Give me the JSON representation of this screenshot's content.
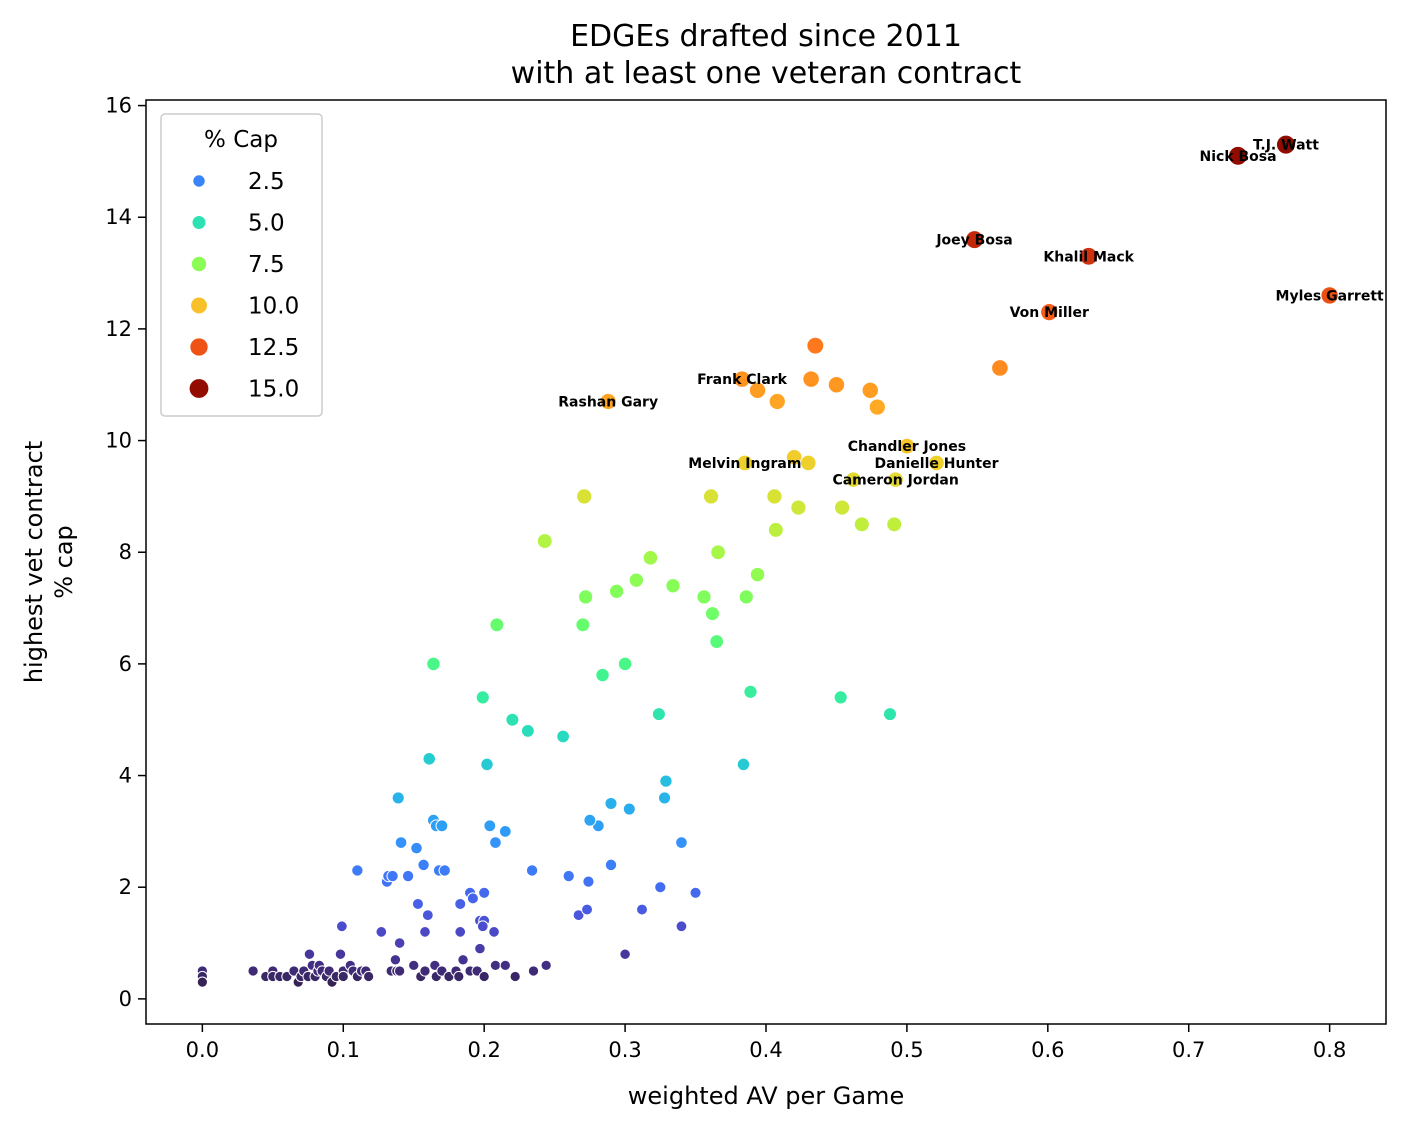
{
  "chart_data": {
    "type": "scatter",
    "title": "EDGEs drafted since 2011",
    "subtitle": "with at least one veteran contract",
    "xlabel": "weighted AV per Game",
    "ylabel_line1": "highest vet contract",
    "ylabel_line2": "% cap",
    "xlim": [
      -0.04,
      0.84
    ],
    "ylim": [
      -0.45,
      16.1
    ],
    "xticks": [
      "0.0",
      "0.1",
      "0.2",
      "0.3",
      "0.4",
      "0.5",
      "0.6",
      "0.7",
      "0.8"
    ],
    "yticks": [
      "0",
      "2",
      "4",
      "6",
      "8",
      "10",
      "12",
      "14",
      "16"
    ],
    "legend": {
      "title": "% Cap",
      "placement": "top-left",
      "entries": [
        {
          "label": "2.5",
          "value": 2.5
        },
        {
          "label": "5.0",
          "value": 5.0
        },
        {
          "label": "7.5",
          "value": 7.5
        },
        {
          "label": "10.0",
          "value": 10.0
        },
        {
          "label": "12.5",
          "value": 12.5
        },
        {
          "label": "15.0",
          "value": 15.0
        }
      ]
    },
    "colormap": "turbo",
    "points": [
      [
        0.0,
        0.5
      ],
      [
        0.0,
        0.4
      ],
      [
        0.0,
        0.3
      ],
      [
        0.036,
        0.5
      ],
      [
        0.045,
        0.4
      ],
      [
        0.05,
        0.5
      ],
      [
        0.05,
        0.4
      ],
      [
        0.055,
        0.4
      ],
      [
        0.06,
        0.4
      ],
      [
        0.065,
        0.5
      ],
      [
        0.068,
        0.3
      ],
      [
        0.07,
        0.4
      ],
      [
        0.072,
        0.5
      ],
      [
        0.075,
        0.4
      ],
      [
        0.076,
        0.8
      ],
      [
        0.078,
        0.6
      ],
      [
        0.08,
        0.4
      ],
      [
        0.082,
        0.5
      ],
      [
        0.083,
        0.6
      ],
      [
        0.085,
        0.5
      ],
      [
        0.088,
        0.4
      ],
      [
        0.09,
        0.5
      ],
      [
        0.092,
        0.3
      ],
      [
        0.095,
        0.4
      ],
      [
        0.098,
        0.8
      ],
      [
        0.1,
        0.5
      ],
      [
        0.1,
        0.4
      ],
      [
        0.105,
        0.6
      ],
      [
        0.107,
        0.5
      ],
      [
        0.11,
        0.4
      ],
      [
        0.113,
        0.5
      ],
      [
        0.116,
        0.5
      ],
      [
        0.118,
        0.4
      ],
      [
        0.134,
        0.5
      ],
      [
        0.137,
        0.7
      ],
      [
        0.138,
        0.5
      ],
      [
        0.14,
        0.5
      ],
      [
        0.15,
        0.6
      ],
      [
        0.155,
        0.4
      ],
      [
        0.158,
        0.5
      ],
      [
        0.165,
        0.6
      ],
      [
        0.166,
        0.4
      ],
      [
        0.17,
        0.5
      ],
      [
        0.175,
        0.4
      ],
      [
        0.18,
        0.5
      ],
      [
        0.182,
        0.4
      ],
      [
        0.185,
        0.7
      ],
      [
        0.19,
        0.5
      ],
      [
        0.195,
        0.5
      ],
      [
        0.2,
        0.4
      ],
      [
        0.208,
        0.6
      ],
      [
        0.215,
        0.6
      ],
      [
        0.222,
        0.4
      ],
      [
        0.235,
        0.5
      ],
      [
        0.244,
        0.6
      ],
      [
        0.3,
        0.8
      ],
      [
        0.099,
        1.3
      ],
      [
        0.127,
        1.2
      ],
      [
        0.14,
        1.0
      ],
      [
        0.153,
        1.7
      ],
      [
        0.158,
        1.2
      ],
      [
        0.16,
        1.5
      ],
      [
        0.183,
        1.2
      ],
      [
        0.197,
        0.9
      ],
      [
        0.197,
        1.4
      ],
      [
        0.2,
        1.4
      ],
      [
        0.199,
        1.3
      ],
      [
        0.207,
        1.2
      ],
      [
        0.267,
        1.5
      ],
      [
        0.273,
        1.6
      ],
      [
        0.3,
        0.8
      ],
      [
        0.312,
        1.6
      ],
      [
        0.34,
        1.3
      ],
      [
        0.183,
        1.7
      ],
      [
        0.19,
        1.9
      ],
      [
        0.192,
        1.8
      ],
      [
        0.2,
        1.9
      ],
      [
        0.26,
        2.2
      ],
      [
        0.274,
        2.1
      ],
      [
        0.29,
        2.4
      ],
      [
        0.325,
        2.0
      ],
      [
        0.35,
        1.9
      ],
      [
        0.234,
        2.3
      ],
      [
        0.11,
        2.3
      ],
      [
        0.131,
        2.1
      ],
      [
        0.132,
        2.2
      ],
      [
        0.135,
        2.2
      ],
      [
        0.146,
        2.2
      ],
      [
        0.157,
        2.4
      ],
      [
        0.168,
        2.3
      ],
      [
        0.172,
        2.3
      ],
      [
        0.152,
        2.7
      ],
      [
        0.141,
        2.8
      ],
      [
        0.208,
        2.8
      ],
      [
        0.215,
        3.0
      ],
      [
        0.204,
        3.1
      ],
      [
        0.164,
        3.2
      ],
      [
        0.166,
        3.1
      ],
      [
        0.17,
        3.1
      ],
      [
        0.281,
        3.1
      ],
      [
        0.275,
        3.2
      ],
      [
        0.29,
        3.5
      ],
      [
        0.303,
        3.4
      ],
      [
        0.328,
        3.6
      ],
      [
        0.34,
        2.8
      ],
      [
        0.329,
        3.9
      ],
      [
        0.139,
        3.6
      ],
      [
        0.161,
        4.3
      ],
      [
        0.202,
        4.2
      ],
      [
        0.384,
        4.2
      ],
      [
        0.199,
        5.4
      ],
      [
        0.22,
        5.0
      ],
      [
        0.231,
        4.8
      ],
      [
        0.256,
        4.7
      ],
      [
        0.284,
        5.8
      ],
      [
        0.3,
        6.0
      ],
      [
        0.324,
        5.1
      ],
      [
        0.389,
        5.5
      ],
      [
        0.453,
        5.4
      ],
      [
        0.488,
        5.1
      ],
      [
        0.164,
        6.0
      ],
      [
        0.209,
        6.7
      ],
      [
        0.27,
        6.7
      ],
      [
        0.272,
        7.2
      ],
      [
        0.294,
        7.3
      ],
      [
        0.308,
        7.5
      ],
      [
        0.318,
        7.9
      ],
      [
        0.334,
        7.4
      ],
      [
        0.356,
        7.2
      ],
      [
        0.362,
        6.9
      ],
      [
        0.365,
        6.4
      ],
      [
        0.366,
        8.0
      ],
      [
        0.386,
        7.2
      ],
      [
        0.394,
        7.6
      ],
      [
        0.243,
        8.2
      ],
      [
        0.271,
        9.0
      ],
      [
        0.361,
        9.0
      ],
      [
        0.406,
        9.0
      ],
      [
        0.407,
        8.4
      ],
      [
        0.423,
        8.8
      ],
      [
        0.454,
        8.8
      ],
      [
        0.468,
        8.5
      ],
      [
        0.491,
        8.5
      ],
      [
        0.462,
        9.3
      ],
      [
        0.492,
        9.3
      ],
      [
        0.385,
        9.6
      ],
      [
        0.42,
        9.7
      ],
      [
        0.43,
        9.6
      ],
      [
        0.5,
        9.9
      ],
      [
        0.521,
        9.6
      ],
      [
        0.288,
        10.7
      ],
      [
        0.383,
        11.1
      ],
      [
        0.394,
        10.9
      ],
      [
        0.408,
        10.7
      ],
      [
        0.432,
        11.1
      ],
      [
        0.45,
        11.0
      ],
      [
        0.474,
        10.9
      ],
      [
        0.479,
        10.6
      ],
      [
        0.435,
        11.7
      ],
      [
        0.566,
        11.3
      ],
      [
        0.601,
        12.3
      ],
      [
        0.548,
        13.6
      ],
      [
        0.629,
        13.3
      ],
      [
        0.8,
        12.6
      ],
      [
        0.735,
        15.1
      ],
      [
        0.769,
        15.3
      ]
    ],
    "annotations": [
      {
        "text": "T.J. Watt",
        "x": 0.769,
        "y": 15.3
      },
      {
        "text": "Nick Bosa",
        "x": 0.735,
        "y": 15.1
      },
      {
        "text": "Joey Bosa",
        "x": 0.548,
        "y": 13.6
      },
      {
        "text": "Khalil Mack",
        "x": 0.629,
        "y": 13.3
      },
      {
        "text": "Myles Garrett",
        "x": 0.8,
        "y": 12.6
      },
      {
        "text": "Von Miller",
        "x": 0.601,
        "y": 12.3
      },
      {
        "text": "Frank Clark",
        "x": 0.383,
        "y": 11.1
      },
      {
        "text": "Rashan Gary",
        "x": 0.288,
        "y": 10.7
      },
      {
        "text": "Chandler Jones",
        "x": 0.5,
        "y": 9.9
      },
      {
        "text": "Melvin Ingram",
        "x": 0.385,
        "y": 9.6
      },
      {
        "text": "Danielle Hunter",
        "x": 0.521,
        "y": 9.6
      },
      {
        "text": "Cameron Jordan",
        "x": 0.492,
        "y": 9.3
      }
    ]
  }
}
